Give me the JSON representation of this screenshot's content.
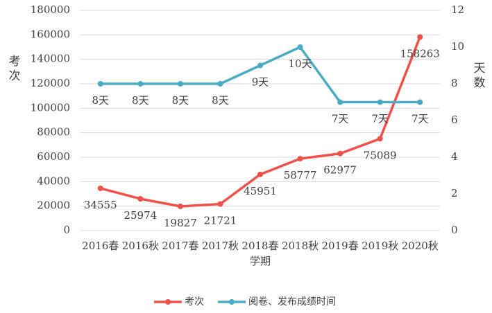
{
  "chart_data": {
    "type": "line",
    "categories": [
      "2016春",
      "2016秋",
      "2017春",
      "2017秋",
      "2018春",
      "2018秋",
      "2019春",
      "2019秋",
      "2020秋"
    ],
    "xlabel": "学期",
    "ylabel": "考次",
    "y2label": "天数",
    "series": [
      {
        "name": "考次",
        "color": "#ef5149",
        "values": [
          34555,
          25974,
          19827,
          21721,
          45951,
          58777,
          62977,
          75089,
          158263
        ]
      },
      {
        "name": "阅卷、发布成绩时间",
        "color": "#4aabc4",
        "axis": "y2",
        "values": [
          8,
          8,
          8,
          8,
          9,
          10,
          7,
          7,
          7
        ],
        "value_labels": [
          "8天",
          "8天",
          "8天",
          "8天",
          "9天",
          "10天",
          "7天",
          "7天",
          "7天"
        ]
      }
    ],
    "ylim": [
      0,
      180000
    ],
    "yticks": [
      0,
      20000,
      40000,
      60000,
      80000,
      100000,
      120000,
      140000,
      160000,
      180000
    ],
    "y2lim": [
      0,
      12
    ],
    "y2ticks": [
      0,
      2,
      4,
      6,
      8,
      10,
      12
    ],
    "grid": true,
    "legend": "bottom"
  }
}
